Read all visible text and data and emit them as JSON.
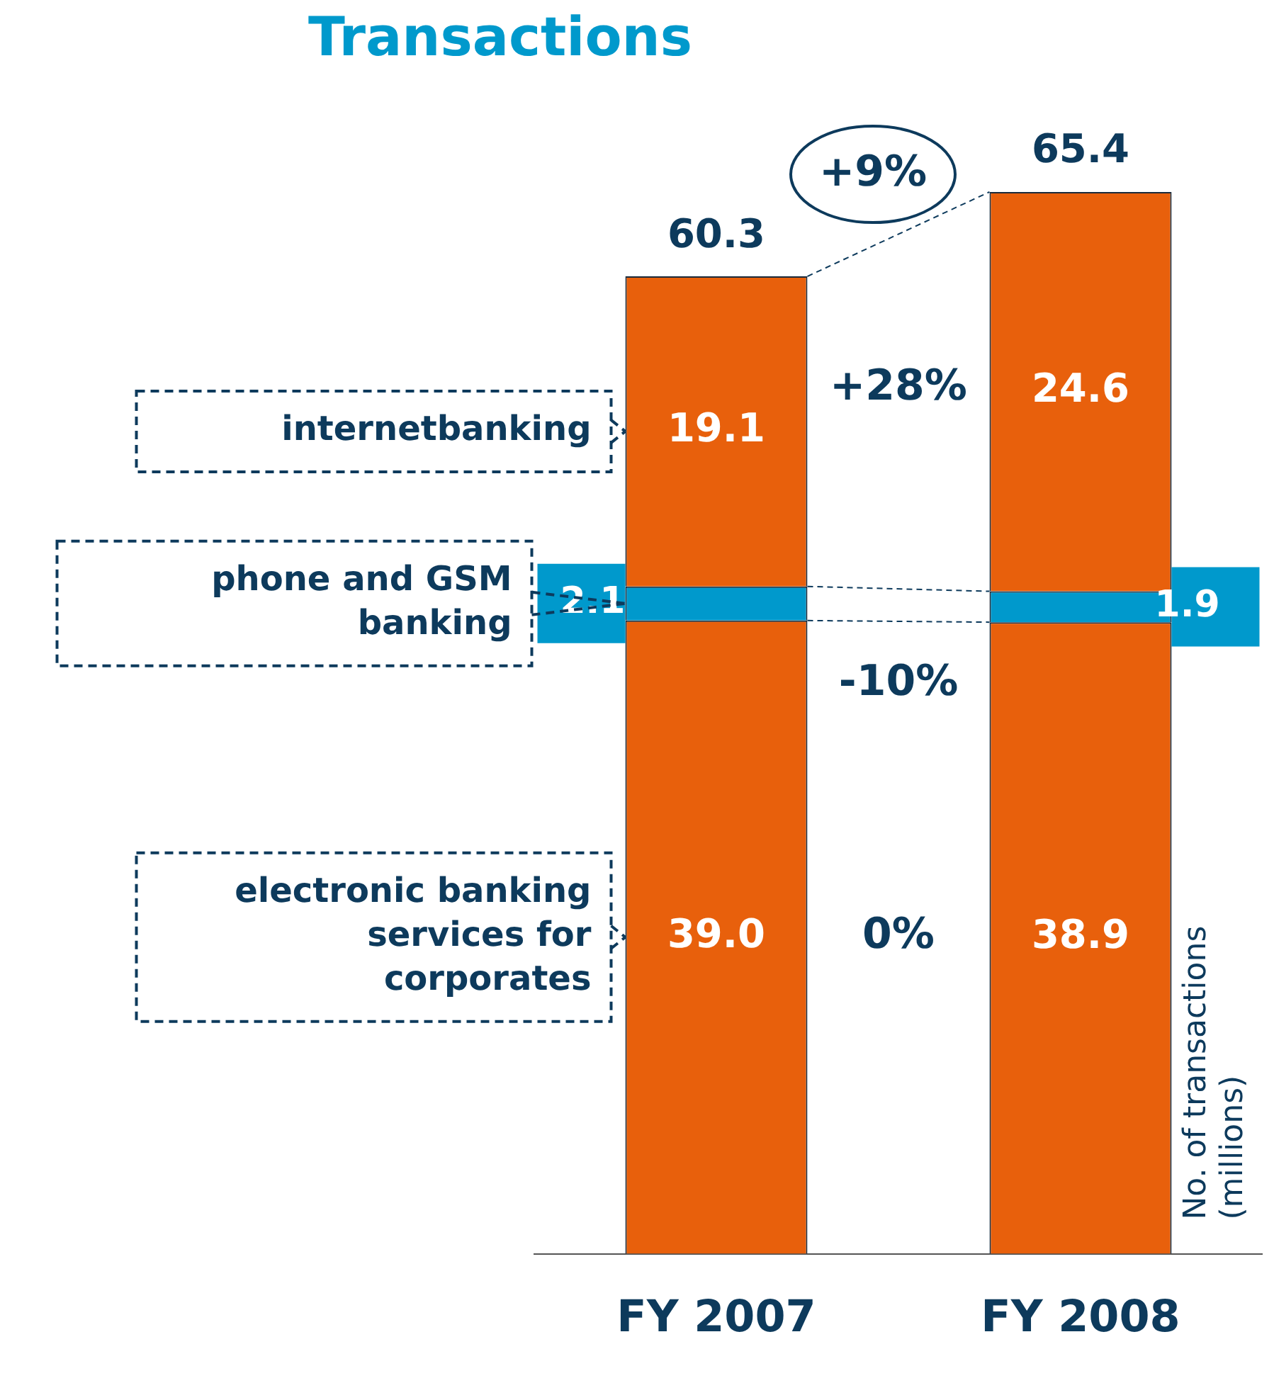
{
  "chart_data": {
    "type": "bar",
    "title": "Transactions",
    "ylabel": "No. of transactions (millions)",
    "categories": [
      "FY 2007",
      "FY 2008"
    ],
    "stacked": true,
    "grid": false,
    "tick_labels": "x",
    "series": [
      {
        "name": "electronic banking services for corporates",
        "color": "#e8600c",
        "values": [
          39.0,
          38.9
        ],
        "value_labels": [
          "39.0",
          "38.9"
        ]
      },
      {
        "name": "phone and GSM banking",
        "color": "#0099cc",
        "values": [
          2.1,
          1.9
        ],
        "value_labels": [
          "2.1",
          "1.9"
        ]
      },
      {
        "name": "internetbanking",
        "color": "#e8600c",
        "values": [
          19.1,
          24.6
        ],
        "value_labels": [
          "19.1",
          "24.6"
        ]
      }
    ],
    "totals": [
      "60.3",
      "65.4"
    ],
    "annotations": [
      "+9%",
      "+28%",
      "-10%",
      "0%"
    ]
  }
}
